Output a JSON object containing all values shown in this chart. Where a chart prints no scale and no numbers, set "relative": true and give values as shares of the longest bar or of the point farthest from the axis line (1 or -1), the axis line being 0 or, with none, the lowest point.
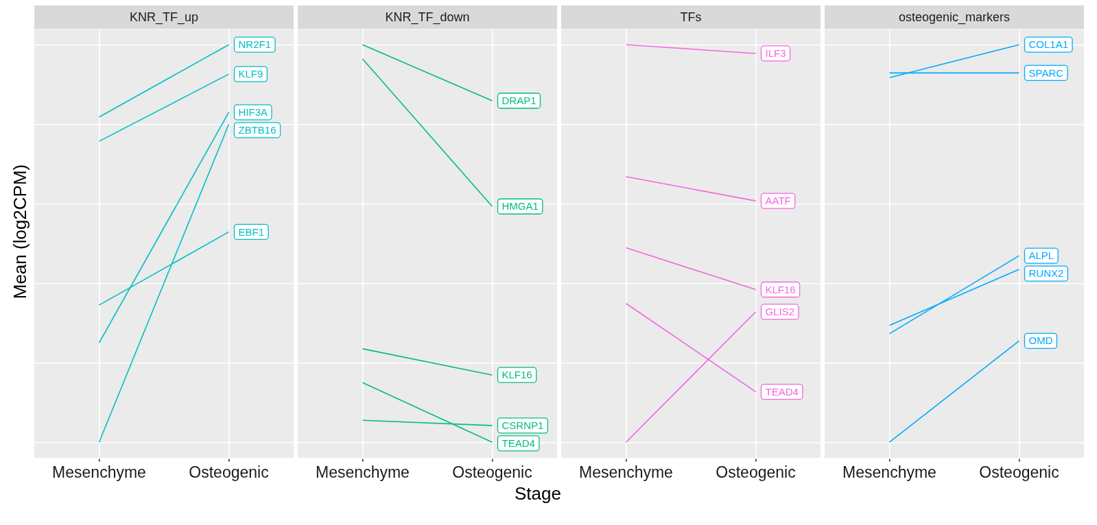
{
  "chart_data": [
    {
      "type": "line",
      "title": "KNR_TF_up",
      "ylabel": "Mean (log2CPM)",
      "relative": true,
      "grid": true,
      "legend": "right",
      "marker": "none",
      "categories": [
        "Mesenchyme",
        "Osteogenic"
      ],
      "series": [
        {
          "name": "NR2F1",
          "color": "#00bfc4",
          "values": [
            0.818,
            1
          ]
        },
        {
          "name": "KLF9",
          "color": "#00bfc4",
          "values": [
            0.757,
            0.926
          ]
        },
        {
          "name": "HIF3A",
          "color": "#00bfc4",
          "values": [
            0.25,
            0.83
          ]
        },
        {
          "name": "ZBTB16",
          "color": "#00bfc4",
          "values": [
            0,
            0.8
          ]
        },
        {
          "name": "EBF1",
          "color": "#00bfc4",
          "values": [
            0.345,
            0.529
          ]
        }
      ]
    },
    {
      "type": "line",
      "title": "KNR_TF_down",
      "xlabel": "Stage",
      "relative": true,
      "grid": true,
      "legend": "right",
      "marker": "none",
      "categories": [
        "Mesenchyme",
        "Osteogenic"
      ],
      "series": [
        {
          "name": "DRAP1",
          "color": "#00be7d",
          "values": [
            1,
            0.859
          ]
        },
        {
          "name": "HMGA1",
          "color": "#00be7d",
          "values": [
            0.964,
            0.593
          ]
        },
        {
          "name": "KLF16",
          "color": "#00be7d",
          "values": [
            0.235,
            0.169
          ]
        },
        {
          "name": "CSRNP1",
          "color": "#00be7d",
          "values": [
            0.055,
            0.042
          ]
        },
        {
          "name": "TEAD4",
          "color": "#00be7d",
          "values": [
            0.15,
            0
          ]
        }
      ]
    },
    {
      "type": "line",
      "title": "TFs",
      "relative": true,
      "grid": true,
      "legend": "right",
      "marker": "none",
      "categories": [
        "Mesenchyme",
        "Osteogenic"
      ],
      "series": [
        {
          "name": "ILF3",
          "color": "#f564e3",
          "values": [
            1,
            0.978
          ]
        },
        {
          "name": "AATF",
          "color": "#f564e3",
          "values": [
            0.668,
            0.607
          ]
        },
        {
          "name": "KLF16",
          "color": "#f564e3",
          "values": [
            0.489,
            0.384
          ]
        },
        {
          "name": "GLIS2",
          "color": "#f564e3",
          "values": [
            0,
            0.328
          ]
        },
        {
          "name": "TEAD4",
          "color": "#f564e3",
          "values": [
            0.349,
            0.127
          ]
        }
      ]
    },
    {
      "type": "line",
      "title": "osteogenic_markers",
      "relative": true,
      "grid": true,
      "legend": "right",
      "marker": "none",
      "categories": [
        "Mesenchyme",
        "Osteogenic"
      ],
      "series": [
        {
          "name": "COL1A1",
          "color": "#00a9ff",
          "values": [
            0.917,
            1
          ]
        },
        {
          "name": "SPARC",
          "color": "#00a9ff",
          "values": [
            0.929,
            0.929
          ]
        },
        {
          "name": "ALPL",
          "color": "#00a9ff",
          "values": [
            0.273,
            0.469
          ]
        },
        {
          "name": "RUNX2",
          "color": "#00a9ff",
          "values": [
            0.294,
            0.435
          ]
        },
        {
          "name": "OMD",
          "color": "#00a9ff",
          "values": [
            0,
            0.255
          ]
        }
      ]
    }
  ]
}
